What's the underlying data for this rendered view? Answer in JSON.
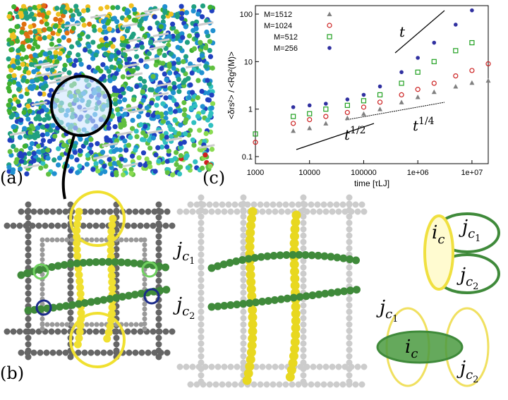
{
  "panels": {
    "a": "(a)",
    "b": "(b)",
    "c": "(c)"
  },
  "chart_data": {
    "type": "scatter",
    "xlabel": "time [τLJ]",
    "ylabel": "<δrs²> / <Rg²(M)>",
    "xlog": true,
    "ylog": true,
    "xlim": [
      1000,
      20000000
    ],
    "ylim": [
      0.1,
      100
    ],
    "xticks": [
      1000,
      10000,
      100000,
      {
        "value": 1000000,
        "label": "1e+06"
      },
      {
        "value": 10000000,
        "label": "1e+07"
      }
    ],
    "yticks": [
      0.1,
      1,
      10,
      100
    ],
    "legend": "upper-left",
    "x": [
      1000,
      5000,
      10000,
      20000,
      50000,
      100000,
      200000,
      500000,
      1000000,
      2000000,
      5000000,
      10000000,
      20000000
    ],
    "series": [
      {
        "name": "M=1512",
        "color": "#808080",
        "marker": "triangle",
        "values": [
          null,
          0.35,
          0.4,
          0.5,
          0.65,
          0.8,
          1.0,
          1.4,
          1.8,
          2.3,
          3.0,
          3.6,
          4.0
        ]
      },
      {
        "name": "M=1024",
        "color": "#cc2020",
        "marker": "open-circle",
        "values": [
          0.2,
          0.5,
          0.6,
          0.7,
          0.85,
          1.1,
          1.4,
          2.0,
          2.6,
          3.5,
          5.0,
          6.5,
          9.0
        ]
      },
      {
        "name": "M=512",
        "color": "#20a020",
        "marker": "open-square",
        "values": [
          0.3,
          0.7,
          0.8,
          1.0,
          1.2,
          1.5,
          2.0,
          3.5,
          6.0,
          10,
          17,
          25,
          null
        ]
      },
      {
        "name": "M=256",
        "color": "#3030a0",
        "marker": "filled-circle",
        "values": [
          null,
          1.1,
          1.2,
          1.3,
          1.6,
          2.0,
          3.0,
          6.0,
          12,
          25,
          60,
          120,
          null
        ]
      }
    ],
    "annotations": [
      {
        "base": "t"
      },
      {
        "base": "t",
        "exp": "1/2"
      },
      {
        "base": "t",
        "exp": "1/4"
      }
    ]
  },
  "labels": [
    {
      "main": "j",
      "sub": "c",
      "subsub": "1"
    },
    {
      "main": "j",
      "sub": "c",
      "subsub": "2"
    },
    {
      "main": "i",
      "sub": "c"
    },
    {
      "main": "j",
      "sub": "c",
      "subsub": "1"
    },
    {
      "main": "j",
      "sub": "c",
      "subsub": "2"
    },
    {
      "main": "j",
      "sub": "c",
      "subsub": "1"
    },
    {
      "main": "i",
      "sub": "c"
    },
    {
      "main": "j",
      "sub": "c",
      "subsub": "2"
    }
  ]
}
